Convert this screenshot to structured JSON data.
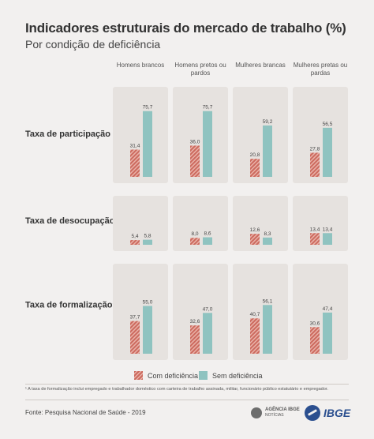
{
  "title": "Indicadores estruturais do mercado de trabalho (%)",
  "subtitle": "Por condição de deficiência",
  "colors": {
    "with_deficiency": "#cc6a5e",
    "without_deficiency": "#8fc3c0",
    "panel": "#e6e2df",
    "background": "#f2f0ef"
  },
  "chart_data": {
    "type": "bar",
    "groups": [
      {
        "label": "Homens brancos"
      },
      {
        "label": "Homens pretos ou pardos"
      },
      {
        "label": "Mulheres brancas"
      },
      {
        "label": "Mulheres pretas ou pardas"
      }
    ],
    "series": [
      {
        "name": "Com deficiência"
      },
      {
        "name": "Sem deficiência"
      }
    ],
    "indicators": [
      {
        "label": "Taxa de participação",
        "sup": "",
        "zero_label": "0",
        "values": [
          [
            31.4,
            75.7
          ],
          [
            36.0,
            75.7
          ],
          [
            20.8,
            59.2
          ],
          [
            27.8,
            56.5
          ]
        ],
        "labels": [
          [
            "31,4",
            "75,7"
          ],
          [
            "36,0",
            "75,7"
          ],
          [
            "20,8",
            "59,2"
          ],
          [
            "27,8",
            "56,5"
          ]
        ]
      },
      {
        "label": "Taxa de desocupação",
        "sup": "",
        "zero_label": "",
        "values": [
          [
            5.4,
            5.8
          ],
          [
            8.0,
            8.6
          ],
          [
            12.6,
            8.3
          ],
          [
            13.4,
            13.4
          ]
        ],
        "labels": [
          [
            "5,4",
            "5,8"
          ],
          [
            "8,0",
            "8,6"
          ],
          [
            "12,6",
            "8,3"
          ],
          [
            "13,4",
            "13,4"
          ]
        ]
      },
      {
        "label": "Taxa de formalização",
        "sup": "1",
        "zero_label": "0",
        "values": [
          [
            37.7,
            55.0
          ],
          [
            32.6,
            47.0
          ],
          [
            40.7,
            56.1
          ],
          [
            30.6,
            47.4
          ]
        ],
        "labels": [
          [
            "37,7",
            "55,0"
          ],
          [
            "32,6",
            "47,0"
          ],
          [
            "40,7",
            "56,1"
          ],
          [
            "30,6",
            "47,4"
          ]
        ]
      }
    ],
    "ylim": [
      0,
      100
    ]
  },
  "legend": {
    "with_label": "Com deficiência",
    "without_label": "Sem deficiência"
  },
  "footnote": "¹ A taxa de formalização inclui empregado e trabalhador doméstico com carteira de trabalho assinada, militar, funcionário público estatutário e empregador.",
  "source": "Fonte: Pesquisa Nacional de Saúde - 2019",
  "logos": {
    "agencia": "AGÊNCIA IBGE",
    "agencia_sub": "NOTÍCIAS",
    "ibge": "IBGE"
  }
}
